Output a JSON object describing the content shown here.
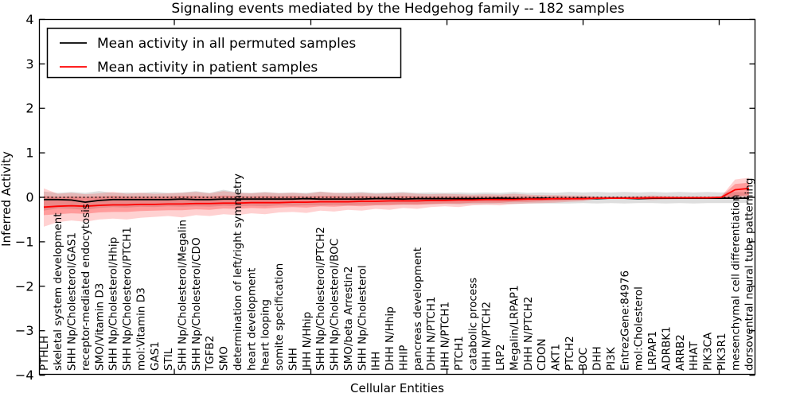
{
  "chart_data": {
    "type": "line",
    "title": "Signaling events mediated by the Hedgehog family -- 182 samples",
    "xlabel": "Cellular Entities",
    "ylabel": "Inferred Activity",
    "ylim": [
      -4,
      4
    ],
    "yticks": [
      4,
      3,
      2,
      1,
      0,
      -1,
      -2,
      -3,
      -4
    ],
    "yticklabels": [
      "4",
      "3",
      "2",
      "1",
      "0",
      "−1",
      "−2",
      "−3",
      "−4"
    ],
    "zero_reference_line": 0,
    "legend_position": "upper-left",
    "legend": [
      {
        "label": "Mean activity in all permuted samples",
        "color": "#000000"
      },
      {
        "label": "Mean activity in patient samples",
        "color": "#ff0000"
      }
    ],
    "colors": {
      "permuted_mean": "#000000",
      "patient_mean": "#ff0000",
      "permuted_band": "rgba(0,0,0,0.13)",
      "patient_band_outer": "rgba(255,0,0,0.18)",
      "patient_band_inner": "rgba(255,0,0,0.25)"
    },
    "categories": [
      "PTHLH",
      "skeletal system development",
      "SHH Np/Cholesterol/GAS1",
      "receptor-mediated endocytosis",
      "SMO/Vitamin D3",
      "SHH Np/Cholesterol/Hhip",
      "SHH Np/Cholesterol/PTCH1",
      "mol:Vitamin D3",
      "GAS1",
      "STIL",
      "SHH Np/Cholesterol/Megalin",
      "SHH Np/Cholesterol/CDO",
      "TGFB2",
      "SMO",
      "determination of left/right symmetry",
      "heart development",
      "heart looping",
      "somite specification",
      "SHH",
      "IHH N/Hhip",
      "SHH Np/Cholesterol/PTCH2",
      "SHH Np/Cholesterol/BOC",
      "SMO/beta Arrestin2",
      "SHH Np/Cholesterol",
      "IHH",
      "DHH N/Hhip",
      "HHIP",
      "pancreas development",
      "DHH N/PTCH1",
      "IHH N/PTCH1",
      "PTCH1",
      "catabolic process",
      "IHH N/PTCH2",
      "LRP2",
      "Megalin/LRPAP1",
      "DHH N/PTCH2",
      "CDON",
      "AKT1",
      "PTCH2",
      "BOC",
      "DHH",
      "PI3K",
      "EntrezGene:84976",
      "mol:Cholesterol",
      "LRPAP1",
      "ADRBK1",
      "ARRB2",
      "HHAT",
      "PIK3CA",
      "PIK3R1",
      "mesenchymal cell differentiation",
      "dorsoventral neural tube patterning"
    ],
    "series": [
      {
        "name": "Mean activity in all permuted samples",
        "values": [
          -0.05,
          -0.05,
          -0.06,
          -0.11,
          -0.07,
          -0.05,
          -0.05,
          -0.05,
          -0.05,
          -0.05,
          -0.04,
          -0.05,
          -0.05,
          -0.04,
          -0.04,
          -0.04,
          -0.04,
          -0.04,
          -0.04,
          -0.03,
          -0.04,
          -0.04,
          -0.04,
          -0.04,
          -0.03,
          -0.03,
          -0.04,
          -0.03,
          -0.03,
          -0.03,
          -0.03,
          -0.03,
          -0.03,
          -0.02,
          -0.03,
          -0.03,
          -0.02,
          -0.03,
          -0.03,
          -0.02,
          -0.03,
          -0.02,
          -0.02,
          -0.03,
          -0.02,
          -0.02,
          -0.02,
          -0.02,
          -0.02,
          -0.02,
          -0.02,
          -0.02
        ]
      },
      {
        "name": "Mean activity in patient samples",
        "values": [
          -0.22,
          -0.2,
          -0.19,
          -0.2,
          -0.18,
          -0.17,
          -0.17,
          -0.16,
          -0.16,
          -0.15,
          -0.15,
          -0.14,
          -0.14,
          -0.13,
          -0.13,
          -0.12,
          -0.12,
          -0.12,
          -0.11,
          -0.11,
          -0.1,
          -0.1,
          -0.1,
          -0.09,
          -0.09,
          -0.08,
          -0.08,
          -0.08,
          -0.07,
          -0.07,
          -0.06,
          -0.06,
          -0.05,
          -0.05,
          -0.05,
          -0.04,
          -0.04,
          -0.03,
          -0.03,
          -0.03,
          -0.02,
          -0.02,
          -0.02,
          -0.02,
          -0.01,
          -0.01,
          -0.01,
          -0.01,
          -0.01,
          0.0,
          0.17,
          0.2
        ]
      }
    ],
    "bands": {
      "permuted_upper": [
        0.13,
        0.1,
        0.12,
        0.1,
        0.14,
        0.1,
        0.11,
        0.1,
        0.12,
        0.1,
        0.11,
        0.14,
        0.1,
        0.17,
        0.11,
        0.1,
        0.12,
        0.1,
        0.11,
        0.1,
        0.13,
        0.1,
        0.11,
        0.12,
        0.1,
        0.11,
        0.12,
        0.1,
        0.11,
        0.1,
        0.11,
        0.1,
        0.11,
        0.1,
        0.12,
        0.1,
        0.11,
        0.1,
        0.12,
        0.11,
        0.12,
        0.11,
        0.12,
        0.11,
        0.12,
        0.11,
        0.12,
        0.11,
        0.12,
        0.11,
        0.12,
        0.11
      ],
      "permuted_lower": [
        -0.3,
        -0.25,
        -0.26,
        -0.28,
        -0.24,
        -0.22,
        -0.23,
        -0.21,
        -0.22,
        -0.2,
        -0.21,
        -0.2,
        -0.21,
        -0.19,
        -0.2,
        -0.19,
        -0.2,
        -0.18,
        -0.19,
        -0.18,
        -0.18,
        -0.17,
        -0.18,
        -0.17,
        -0.17,
        -0.16,
        -0.17,
        -0.16,
        -0.16,
        -0.15,
        -0.16,
        -0.15,
        -0.15,
        -0.14,
        -0.15,
        -0.14,
        -0.14,
        -0.14,
        -0.14,
        -0.13,
        -0.14,
        -0.13,
        -0.14,
        -0.13,
        -0.13,
        -0.14,
        -0.13,
        -0.14,
        -0.13,
        -0.13,
        -0.13,
        -0.12
      ],
      "patient_outer_upper": [
        0.2,
        0.08,
        0.1,
        0.07,
        0.09,
        0.12,
        0.08,
        0.1,
        0.08,
        0.09,
        0.1,
        0.12,
        0.09,
        0.14,
        0.1,
        0.09,
        0.11,
        0.09,
        0.1,
        0.08,
        0.12,
        0.1,
        0.09,
        0.1,
        0.08,
        0.09,
        0.1,
        0.08,
        0.07,
        0.08,
        0.07,
        0.06,
        0.07,
        0.06,
        0.08,
        0.06,
        0.05,
        0.05,
        0.04,
        0.04,
        0.02,
        0.02,
        0.02,
        0.03,
        0.04,
        0.03,
        0.02,
        0.02,
        0.02,
        0.02,
        0.4,
        0.44
      ],
      "patient_outer_lower": [
        -0.66,
        -0.56,
        -0.52,
        -0.55,
        -0.5,
        -0.48,
        -0.5,
        -0.46,
        -0.44,
        -0.42,
        -0.45,
        -0.4,
        -0.42,
        -0.38,
        -0.4,
        -0.36,
        -0.38,
        -0.34,
        -0.33,
        -0.35,
        -0.3,
        -0.32,
        -0.28,
        -0.3,
        -0.26,
        -0.28,
        -0.24,
        -0.26,
        -0.22,
        -0.2,
        -0.22,
        -0.18,
        -0.17,
        -0.18,
        -0.15,
        -0.14,
        -0.13,
        -0.12,
        -0.1,
        -0.09,
        -0.04,
        -0.04,
        -0.04,
        -0.05,
        -0.06,
        -0.05,
        -0.04,
        -0.04,
        -0.04,
        -0.04,
        -0.02,
        -0.01
      ],
      "patient_inner_upper": [
        0.03,
        0.01,
        0.02,
        0.01,
        0.02,
        0.03,
        0.02,
        0.02,
        0.02,
        0.02,
        0.03,
        0.03,
        0.02,
        0.04,
        0.03,
        0.02,
        0.03,
        0.02,
        0.03,
        0.02,
        0.03,
        0.03,
        0.02,
        0.03,
        0.02,
        0.02,
        0.03,
        0.02,
        0.02,
        0.02,
        0.02,
        0.02,
        0.02,
        0.02,
        0.02,
        0.02,
        0.01,
        0.02,
        0.01,
        0.01,
        0.01,
        0.01,
        0.01,
        0.01,
        0.02,
        0.01,
        0.01,
        0.01,
        0.01,
        0.02,
        0.3,
        0.33
      ],
      "patient_inner_lower": [
        -0.4,
        -0.38,
        -0.36,
        -0.37,
        -0.34,
        -0.33,
        -0.33,
        -0.31,
        -0.3,
        -0.29,
        -0.29,
        -0.27,
        -0.28,
        -0.25,
        -0.26,
        -0.24,
        -0.25,
        -0.23,
        -0.22,
        -0.23,
        -0.2,
        -0.21,
        -0.19,
        -0.2,
        -0.18,
        -0.18,
        -0.16,
        -0.17,
        -0.15,
        -0.14,
        -0.14,
        -0.12,
        -0.12,
        -0.12,
        -0.1,
        -0.1,
        -0.09,
        -0.08,
        -0.07,
        -0.06,
        -0.03,
        -0.03,
        -0.03,
        -0.03,
        -0.04,
        -0.03,
        -0.03,
        -0.03,
        -0.03,
        -0.03,
        0.02,
        0.05
      ]
    }
  }
}
